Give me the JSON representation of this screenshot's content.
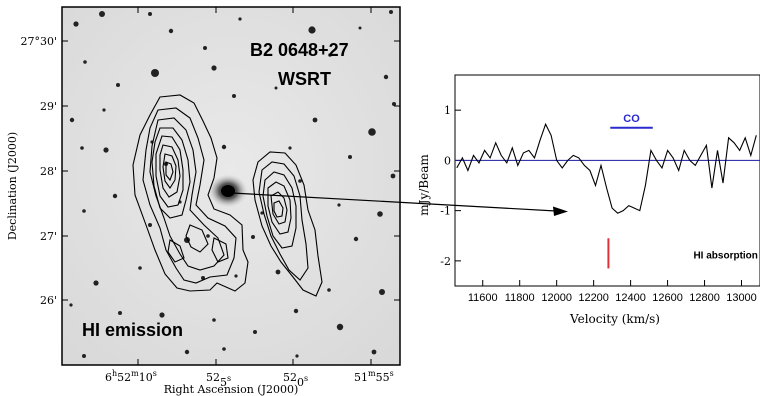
{
  "left_panel": {
    "source_name": "B2 0648+27",
    "telescope": "WSRT",
    "overlay_label": "HI emission",
    "ylabel": "Declination (J2000)",
    "xlabel": "Right Ascension (J2000)",
    "dec_ticks": [
      "27°30'",
      "29'",
      "28'",
      "27'",
      "26'"
    ],
    "ra_ticks": [
      {
        "main": "6",
        "h": "h",
        "m_val": "52",
        "m": "m",
        "s_val": "10",
        "s": "s"
      },
      {
        "main": "52",
        "h": "",
        "m_val": "",
        "m": "",
        "s_val": "5",
        "s": "s"
      },
      {
        "main": "52",
        "h": "",
        "m_val": "",
        "m": "",
        "s_val": "0",
        "s": "s"
      },
      {
        "main": "51",
        "h": "",
        "m_val": "",
        "m": "m",
        "s_val": "55",
        "s": "s"
      }
    ]
  },
  "chart_data": {
    "type": "line",
    "xlabel": "Velocity (km/s)",
    "ylabel": "mJy/Beam",
    "xlim": [
      11450,
      13100
    ],
    "ylim": [
      -2.5,
      1.7
    ],
    "xticks": [
      11600,
      11800,
      12000,
      12200,
      12400,
      12600,
      12800,
      13000
    ],
    "yticks": [
      1,
      0,
      -1,
      -2
    ],
    "grid": false,
    "baseline": 0,
    "colors": {
      "spectrum": "#000000",
      "baseline": "#1a1aa0",
      "co": "#2a2ad0",
      "marker": "#e0303a"
    },
    "series": [
      {
        "x": [
          11460,
          11490,
          11520,
          11550,
          11580,
          11610,
          11640,
          11670,
          11700,
          11730,
          11760,
          11790,
          11820,
          11850,
          11880,
          11910,
          11940,
          11970,
          12000,
          12030,
          12060,
          12090,
          12120,
          12150,
          12180,
          12210,
          12240,
          12270,
          12300,
          12330,
          12360,
          12390,
          12420,
          12450,
          12480,
          12510,
          12540,
          12570,
          12600,
          12630,
          12660,
          12690,
          12720,
          12750,
          12780,
          12810,
          12840,
          12870,
          12900,
          12930,
          12960,
          12990,
          13020,
          13050,
          13080
        ],
        "y": [
          -0.15,
          0.05,
          -0.2,
          0.1,
          -0.05,
          0.2,
          0.05,
          0.35,
          0.1,
          -0.05,
          0.25,
          -0.1,
          0.15,
          0.2,
          0.05,
          0.4,
          0.72,
          0.5,
          0.0,
          -0.15,
          0.0,
          0.1,
          0.05,
          -0.1,
          -0.2,
          -0.5,
          -0.1,
          -0.55,
          -0.95,
          -1.05,
          -1.0,
          -0.9,
          -0.95,
          -1.0,
          -0.5,
          0.2,
          0.0,
          -0.15,
          0.2,
          0.05,
          -0.2,
          0.2,
          0.0,
          -0.1,
          0.1,
          0.3,
          -0.55,
          0.2,
          -0.45,
          0.45,
          0.35,
          0.2,
          0.45,
          0.1,
          0.5
        ]
      }
    ],
    "annotations": {
      "co_label": "CO",
      "co_range": [
        12290,
        12520
      ],
      "co_level": 0.65,
      "hi_label": "HI absorption",
      "marker_x": 12280,
      "marker_range": [
        -1.55,
        -2.15
      ]
    }
  }
}
